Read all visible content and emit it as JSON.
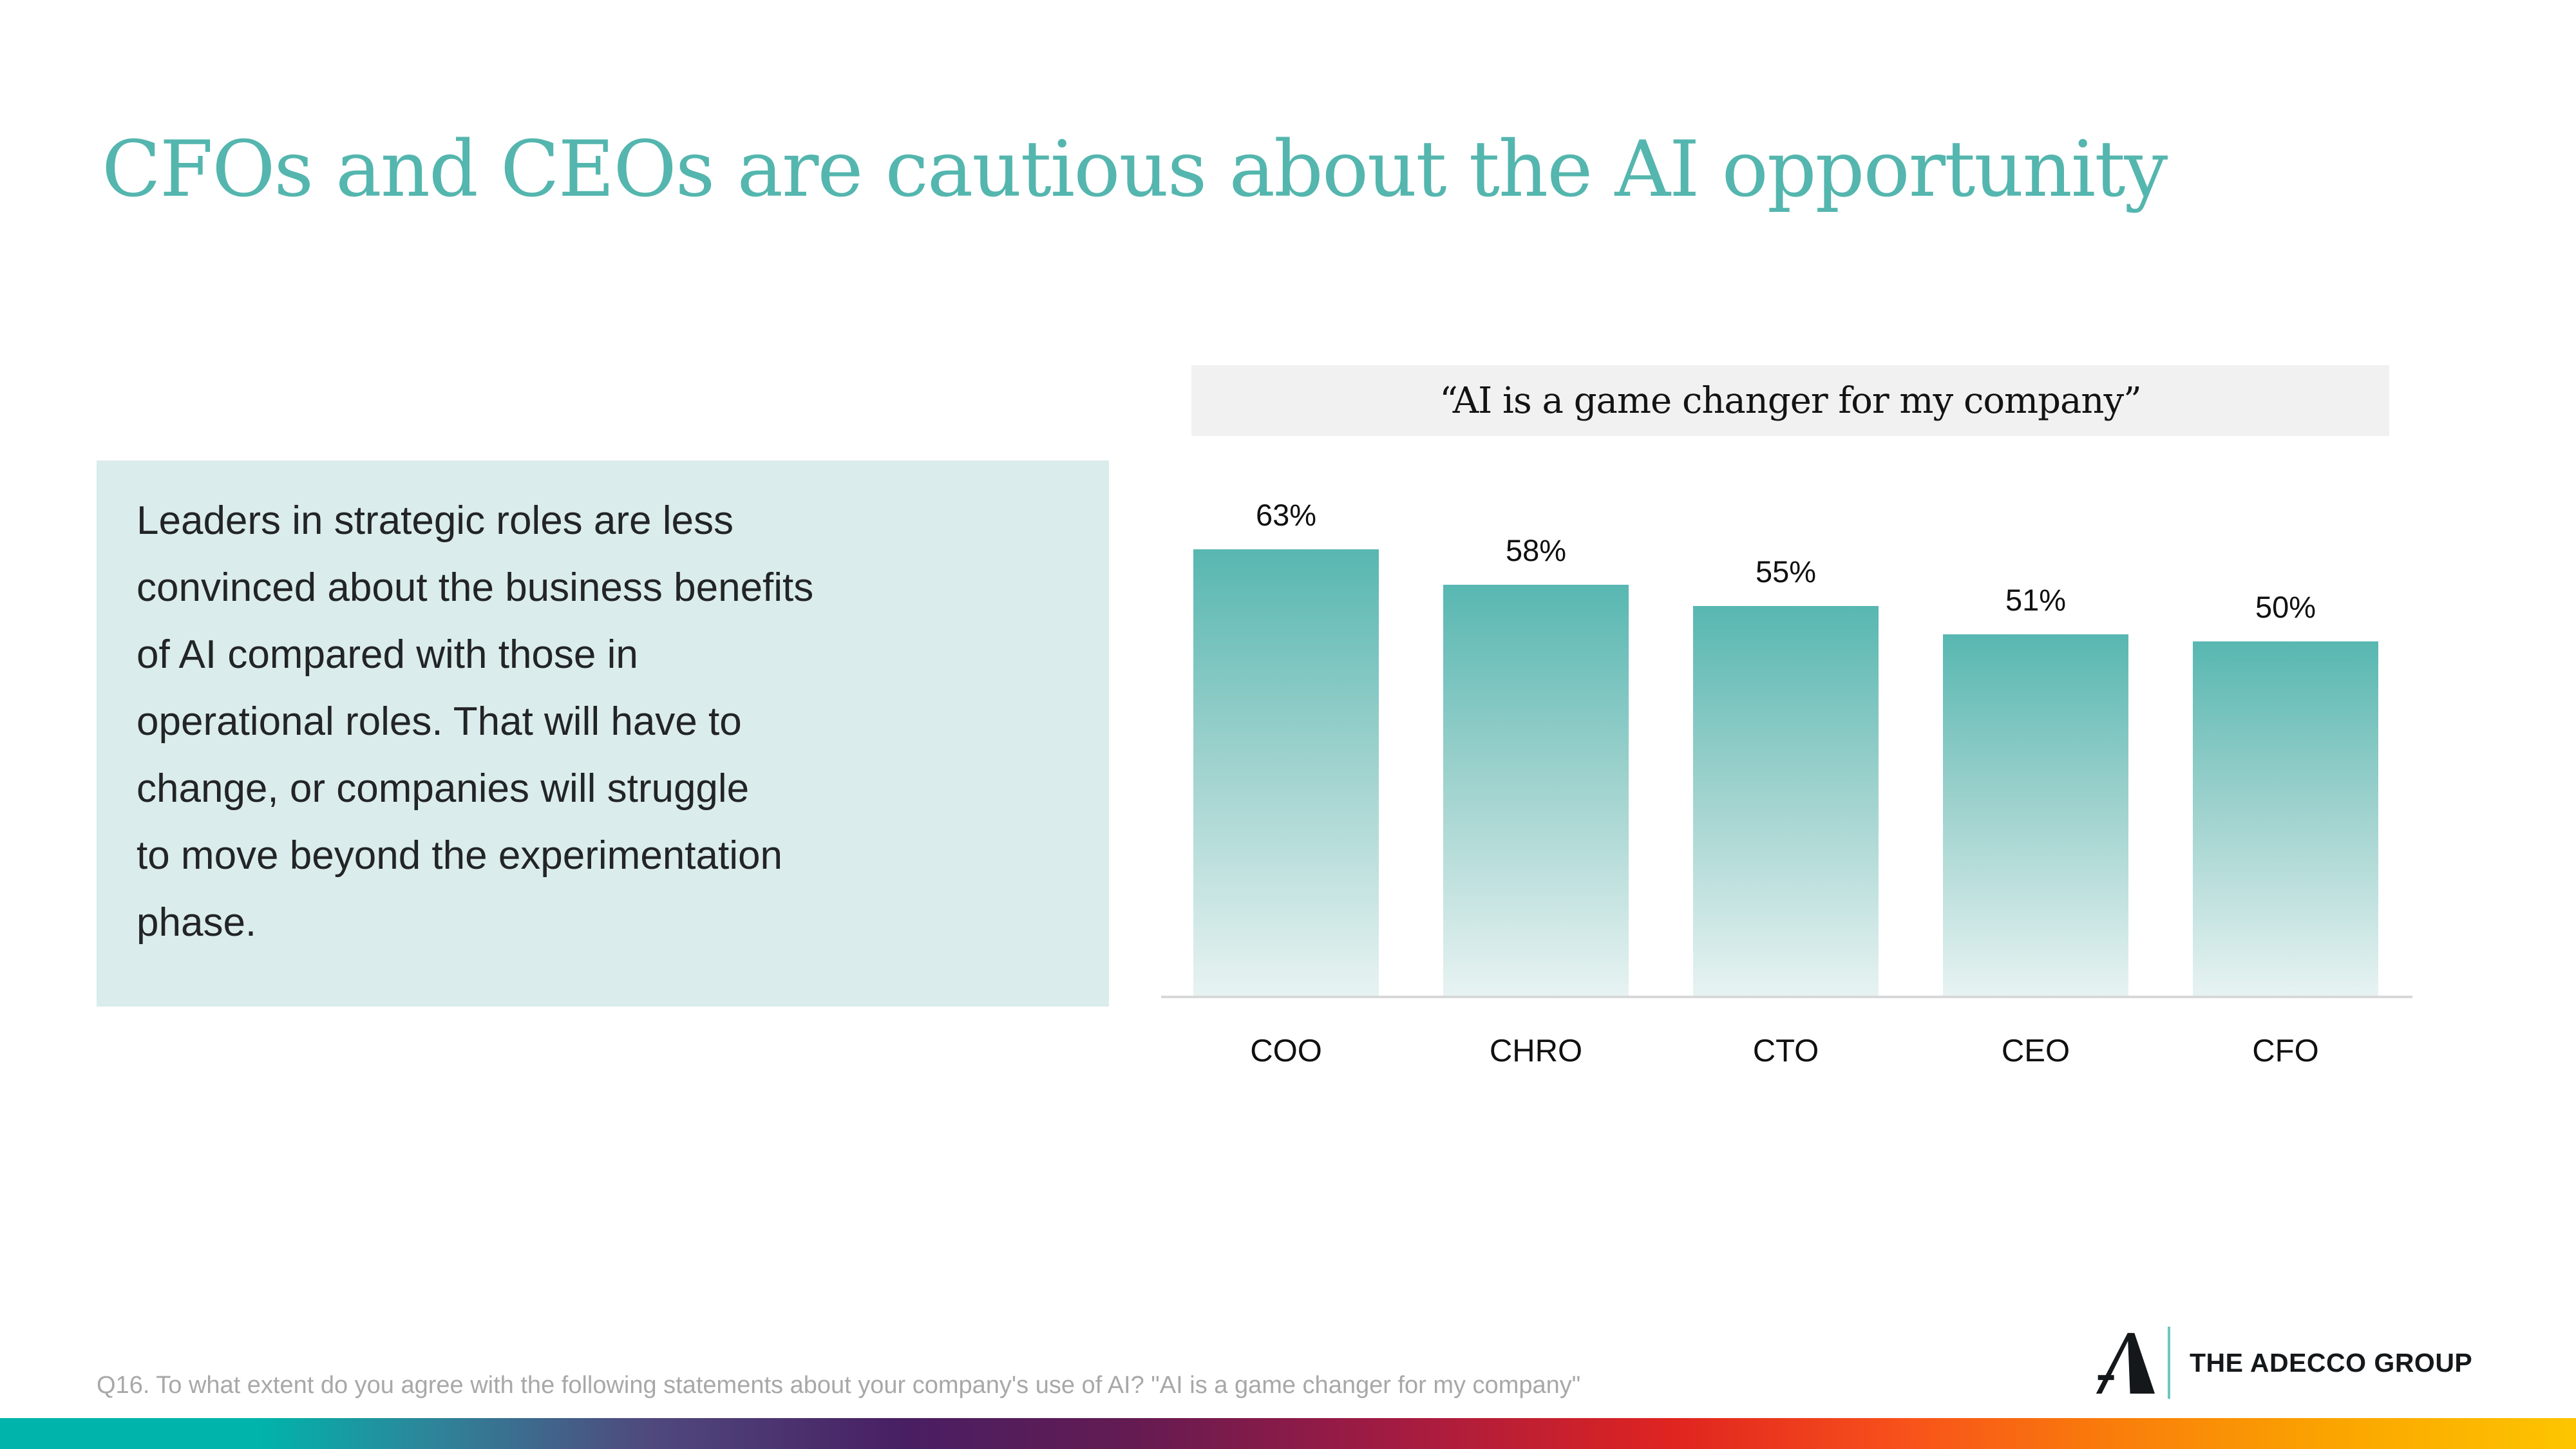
{
  "slide": {
    "title": "CFOs and CEOs are cautious about the AI opportunity",
    "callout": {
      "text": "Leaders in strategic roles are less\nconvinced about the business benefits\nof AI compared with those in\noperational roles. That will have to\nchange, or companies will struggle\nto move beyond the experimentation\nphase."
    },
    "footnote": "Q16. To what extent do you agree with the following statements about your company's use of AI? \"AI is a game changer for my company\"",
    "brand": {
      "name": "THE ADECCO GROUP",
      "logo": "adecco-a-monogram"
    }
  },
  "chart_data": {
    "type": "bar",
    "title": "“AI is a game changer for my company”",
    "categories": [
      "COO",
      "CHRO",
      "CTO",
      "CEO",
      "CFO"
    ],
    "values": [
      63,
      58,
      55,
      51,
      50
    ],
    "value_labels": [
      "63%",
      "58%",
      "55%",
      "51%",
      "50%"
    ],
    "unit": "%",
    "axis": "none",
    "grid": false,
    "legend": false,
    "colors": {
      "bar_gradient_top": "#58b7b1",
      "bar_gradient_bottom": "#e7f3f2",
      "baseline": "#d8d8d8",
      "banner_background": "#f1f1f1"
    }
  },
  "colors": {
    "title_accent": "#54b6ae",
    "callout_background": "#daeceb",
    "footnote_gray": "#a8a8a8",
    "bottom_bar_gradient": [
      "#00b4ab",
      "#4f4a7e",
      "#641b52",
      "#e02420",
      "#f97d0b",
      "#fdc500"
    ],
    "logo_divider_teal": "#6ec6bf"
  }
}
